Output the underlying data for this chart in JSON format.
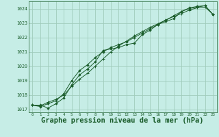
{
  "bg_color": "#c6ede6",
  "grid_color": "#a0ccbb",
  "line_color": "#1a5c2a",
  "marker_color": "#1a5c2a",
  "xlabel": "Graphe pression niveau de la mer (hPa)",
  "xlabel_fontsize": 7.5,
  "ylim": [
    1016.8,
    1024.5
  ],
  "xlim": [
    -0.5,
    23.5
  ],
  "yticks": [
    1017,
    1018,
    1019,
    1020,
    1021,
    1022,
    1023,
    1024
  ],
  "xticks": [
    0,
    1,
    2,
    3,
    4,
    5,
    6,
    7,
    8,
    9,
    10,
    11,
    12,
    13,
    14,
    15,
    16,
    17,
    18,
    19,
    20,
    21,
    22,
    23
  ],
  "series1_x": [
    0,
    1,
    2,
    3,
    4,
    5,
    6,
    7,
    8,
    9,
    10,
    11,
    12,
    13,
    14,
    15,
    16,
    17,
    18,
    19,
    20,
    21,
    22,
    23
  ],
  "series1_y": [
    1017.3,
    1017.3,
    1017.1,
    1017.4,
    1017.8,
    1018.7,
    1019.4,
    1019.8,
    1020.3,
    1021.1,
    1021.2,
    1021.3,
    1021.5,
    1021.6,
    1022.2,
    1022.5,
    1022.9,
    1023.1,
    1023.3,
    1023.8,
    1024.0,
    1024.1,
    1024.2,
    1023.6
  ],
  "series2_x": [
    0,
    1,
    2,
    3,
    4,
    5,
    6,
    7,
    8,
    9,
    10,
    11,
    12,
    13,
    14,
    15,
    16,
    17,
    18,
    19,
    20,
    21,
    22,
    23
  ],
  "series2_y": [
    1017.3,
    1017.2,
    1017.4,
    1017.6,
    1018.1,
    1019.0,
    1019.7,
    1020.1,
    1020.6,
    1021.0,
    1021.3,
    1021.5,
    1021.7,
    1022.0,
    1022.3,
    1022.6,
    1022.9,
    1023.2,
    1023.5,
    1023.8,
    1024.05,
    1024.15,
    1024.2,
    1023.6
  ],
  "series3_x": [
    0,
    1,
    2,
    3,
    4,
    5,
    6,
    7,
    8,
    9,
    10,
    11,
    12,
    13,
    14,
    15,
    16,
    17,
    18,
    19,
    20,
    21,
    22,
    23
  ],
  "series3_y": [
    1017.3,
    1017.25,
    1017.5,
    1017.7,
    1018.0,
    1018.6,
    1019.1,
    1019.5,
    1020.0,
    1020.5,
    1021.0,
    1021.4,
    1021.75,
    1022.1,
    1022.4,
    1022.7,
    1022.95,
    1023.2,
    1023.45,
    1023.65,
    1023.9,
    1024.05,
    1024.1,
    1023.6
  ]
}
